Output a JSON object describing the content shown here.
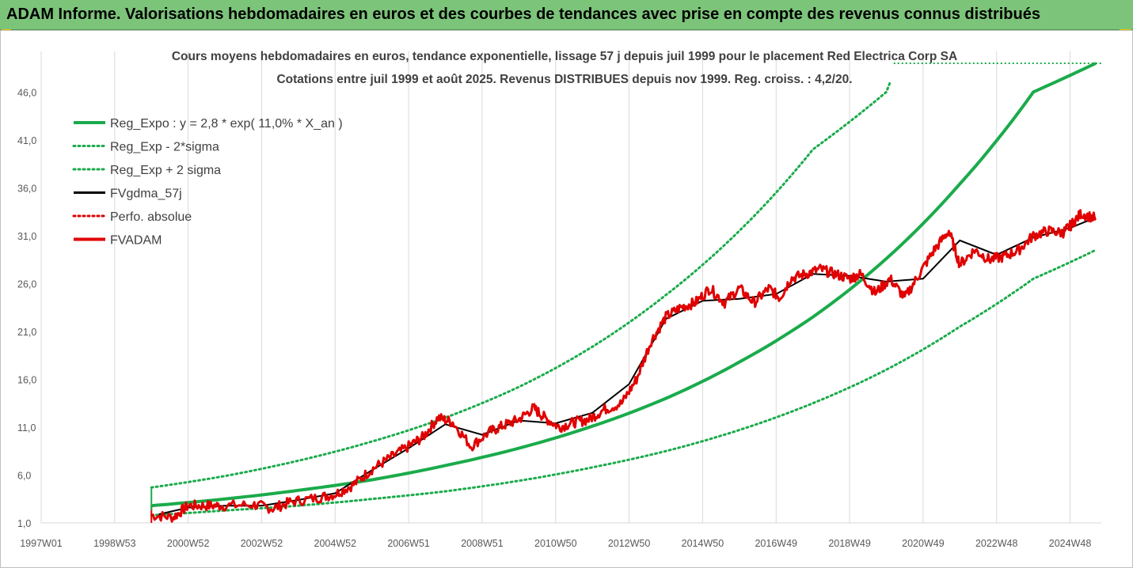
{
  "banner": {
    "title": "ADAM Informe. Valorisations hebdomadaires en euros et des courbes de tendances avec prise en compte des revenus connus distribués"
  },
  "colors": {
    "banner": "#7cc47a",
    "trend": "#1aab4b",
    "price": "#e00000",
    "smoothed": "#000000",
    "accent_corner": "#f2c200"
  },
  "chart_data": {
    "type": "line",
    "title_line1": "Cours moyens hebdomadaires en euros, tendance exponentielle, lissage 57 j depuis juil 1999 pour le placement Red Electrica Corp SA",
    "title_line2": "Cotations entre juil 1999 et août 2025. Revenus DISTRIBUES depuis nov 1999. Reg. croiss. : 4,2/20.",
    "xlim": [
      1997.0,
      2025.85
    ],
    "ylim": [
      1.0,
      49.0
    ],
    "y_ticks": [
      1.0,
      6.0,
      11.0,
      16.0,
      21.0,
      26.0,
      31.0,
      36.0,
      41.0,
      46.0
    ],
    "y_tick_labels": [
      "1,0",
      "6,0",
      "11,0",
      "16,0",
      "21,0",
      "26,0",
      "31,0",
      "36,0",
      "41,0",
      "46,0"
    ],
    "x_ticks": [
      1997.0,
      1999.0,
      2001.0,
      2003.0,
      2005.0,
      2007.0,
      2009.0,
      2011.0,
      2013.0,
      2015.0,
      2017.0,
      2019.0,
      2021.0,
      2023.0,
      2025.0
    ],
    "x_tick_labels": [
      "1997W01",
      "1998W53",
      "2000W52",
      "2002W52",
      "2004W52",
      "2006W51",
      "2008W51",
      "2010W50",
      "2012W50",
      "2014W50",
      "2016W49",
      "2018W49",
      "2020W49",
      "2022W48",
      "2024W48"
    ],
    "grid": "vertical",
    "legend_position": "top-left",
    "legend": [
      {
        "label": "Reg_Expo : y = 2,8 * exp( 11,0% *  X_an )",
        "color": "#1aab4b",
        "style": "solid-thick"
      },
      {
        "label": "Reg_Exp - 2*sigma",
        "color": "#1aab4b",
        "style": "dotted"
      },
      {
        "label": "Reg_Exp + 2 sigma",
        "color": "#1aab4b",
        "style": "dotted"
      },
      {
        "label": "FVgdma_57j",
        "color": "#000000",
        "style": "solid"
      },
      {
        "label": "Perfo. absolue",
        "color": "#e00000",
        "style": "dotted"
      },
      {
        "label": "FVADAM",
        "color": "#e00000",
        "style": "solid-thick"
      }
    ],
    "series": [
      {
        "name": "Reg_Expo : y = 2,8 * exp( 11,0% *  X_an )",
        "x": [
          2000.0,
          2002.0,
          2004.0,
          2006.0,
          2008.0,
          2010.0,
          2012.0,
          2014.0,
          2016.0,
          2018.0,
          2020.0,
          2022.0,
          2024.0,
          2025.7
        ],
        "y": [
          2.8,
          3.5,
          4.4,
          5.5,
          7.0,
          8.8,
          11.1,
          14.0,
          17.8,
          22.5,
          28.6,
          36.4,
          46.0,
          49.0
        ]
      },
      {
        "name": "Reg_Exp - 2*sigma",
        "x": [
          2000.0,
          2002.0,
          2004.0,
          2006.0,
          2008.0,
          2010.0,
          2012.0,
          2014.0,
          2016.0,
          2018.0,
          2020.0,
          2022.0,
          2024.0,
          2025.7
        ],
        "y": [
          1.8,
          2.3,
          2.8,
          3.5,
          4.3,
          5.4,
          6.8,
          8.5,
          10.7,
          13.5,
          17.0,
          21.5,
          26.5,
          29.5
        ]
      },
      {
        "name": "Reg_Exp + 2 sigma",
        "x": [
          2000.0,
          2002.0,
          2004.0,
          2006.0,
          2008.0,
          2010.0,
          2012.0,
          2014.0,
          2016.0,
          2018.0,
          2020.0,
          2020.1
        ],
        "y": [
          4.7,
          5.9,
          7.5,
          9.5,
          12.0,
          15.2,
          19.4,
          24.8,
          31.5,
          40.0,
          46.0,
          47.0
        ]
      },
      {
        "name": "FVADAM",
        "x": [
          2000.0,
          2000.6,
          2001.0,
          2001.5,
          2002.0,
          2002.8,
          2003.3,
          2003.8,
          2004.5,
          2005.0,
          2005.5,
          2006.0,
          2006.5,
          2007.0,
          2007.4,
          2007.8,
          2008.2,
          2008.7,
          2009.2,
          2009.6,
          2010.0,
          2010.4,
          2010.7,
          2011.1,
          2011.5,
          2011.9,
          2012.3,
          2012.8,
          2013.2,
          2013.6,
          2014.0,
          2014.4,
          2014.8,
          2015.2,
          2015.6,
          2016.0,
          2016.4,
          2016.8,
          2017.1,
          2017.4,
          2017.8,
          2018.2,
          2018.6,
          2019.0,
          2019.3,
          2019.7,
          2020.1,
          2020.5,
          2020.9,
          2021.3,
          2021.7,
          2022.0,
          2022.4,
          2022.8,
          2023.2,
          2023.6,
          2024.0,
          2024.4,
          2024.8,
          2025.0,
          2025.3,
          2025.7
        ],
        "y": [
          1.8,
          1.6,
          2.8,
          2.8,
          2.8,
          2.9,
          2.5,
          3.2,
          3.6,
          4.0,
          5.0,
          6.6,
          7.8,
          9.0,
          10.0,
          12.0,
          11.5,
          9.0,
          10.5,
          11.2,
          11.8,
          13.0,
          12.0,
          11.0,
          11.5,
          11.8,
          12.8,
          13.5,
          16.0,
          20.0,
          22.5,
          23.5,
          24.0,
          25.5,
          24.0,
          25.5,
          24.0,
          25.5,
          24.5,
          26.5,
          27.0,
          27.5,
          27.0,
          26.5,
          27.0,
          25.0,
          26.5,
          24.5,
          27.0,
          29.5,
          31.5,
          28.0,
          29.5,
          28.5,
          28.8,
          29.5,
          31.0,
          31.5,
          31.3,
          32.0,
          33.3,
          32.8
        ]
      },
      {
        "name": "FVgdma_57j",
        "x": [
          2000.2,
          2001.0,
          2002.0,
          2003.0,
          2004.0,
          2005.0,
          2006.0,
          2007.0,
          2008.0,
          2009.0,
          2010.0,
          2011.0,
          2012.0,
          2013.0,
          2014.0,
          2015.0,
          2016.0,
          2017.0,
          2018.0,
          2019.0,
          2020.0,
          2021.0,
          2022.0,
          2023.0,
          2024.0,
          2025.0,
          2025.7
        ],
        "y": [
          1.9,
          2.6,
          2.8,
          2.8,
          3.4,
          4.1,
          6.5,
          8.8,
          11.3,
          10.2,
          11.7,
          11.4,
          12.5,
          15.5,
          22.3,
          24.2,
          24.4,
          24.9,
          27.0,
          26.8,
          26.2,
          26.5,
          30.5,
          29.0,
          30.8,
          31.8,
          32.9
        ]
      }
    ]
  }
}
